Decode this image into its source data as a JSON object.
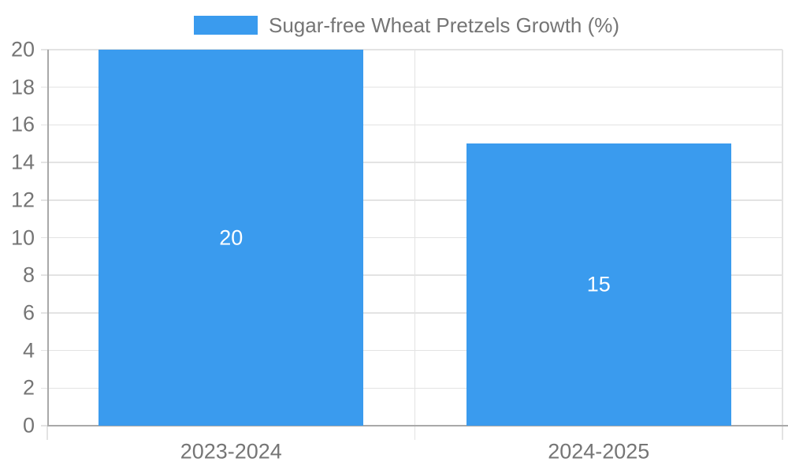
{
  "legend": {
    "label": "Sugar-free Wheat Pretzels Growth (%)"
  },
  "chart_data": {
    "type": "bar",
    "title": "",
    "xlabel": "",
    "ylabel": "",
    "categories": [
      "2023-2024",
      "2024-2025"
    ],
    "values": [
      20,
      15
    ],
    "bar_labels": [
      "20",
      "15"
    ],
    "series_name": "Sugar-free Wheat Pretzels Growth (%)",
    "ylim": [
      0,
      20
    ],
    "ytick_step": 2,
    "legend_position": "top",
    "grid": true,
    "colors": {
      "bar": "#3A9BEE",
      "axis_line": "#A9A9A9",
      "gridline": "#E3E3E3",
      "tick_label": "#757575",
      "bar_label": "#FFFFFF",
      "background": "#FFFFFF"
    }
  }
}
